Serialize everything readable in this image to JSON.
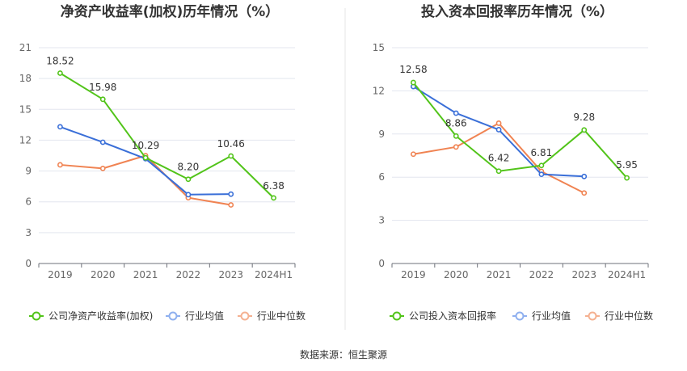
{
  "colors": {
    "company": "#52c41a",
    "avg": "#3a6fd8",
    "median": "#f08352",
    "legend_avg": "#8fb0ef",
    "legend_median": "#f5b191"
  },
  "source": "数据来源：恒生聚源",
  "chart_data": [
    {
      "type": "line",
      "title": "净资产收益率(加权)历年情况（%）",
      "categories": [
        "2019",
        "2020",
        "2021",
        "2022",
        "2023",
        "2024H1"
      ],
      "ylim": [
        0,
        21
      ],
      "yticks": [
        0,
        3,
        6,
        9,
        12,
        15,
        18,
        21
      ],
      "grid": true,
      "legend_position": "bottom",
      "series": [
        {
          "name": "公司净资产收益率(加权)",
          "key": "company",
          "values": [
            18.52,
            15.98,
            10.29,
            8.2,
            10.46,
            6.38
          ],
          "labels": [
            "18.52",
            "15.98",
            "10.29",
            "8.20",
            "10.46",
            "6.38"
          ]
        },
        {
          "name": "行业均值",
          "key": "avg",
          "values": [
            13.3,
            11.8,
            10.2,
            6.7,
            6.75,
            null
          ]
        },
        {
          "name": "行业中位数",
          "key": "median",
          "values": [
            9.6,
            9.25,
            10.5,
            6.4,
            5.7,
            null
          ]
        }
      ]
    },
    {
      "type": "line",
      "title": "投入资本回报率历年情况（%）",
      "categories": [
        "2019",
        "2020",
        "2021",
        "2022",
        "2023",
        "2024H1"
      ],
      "ylim": [
        0,
        15
      ],
      "yticks": [
        0,
        3,
        6,
        9,
        12,
        15
      ],
      "grid": true,
      "legend_position": "bottom",
      "series": [
        {
          "name": "公司投入资本回报率",
          "key": "company",
          "values": [
            12.58,
            8.86,
            6.42,
            6.81,
            9.28,
            5.95
          ],
          "labels": [
            "12.58",
            "8.86",
            "6.42",
            "6.81",
            "9.28",
            "5.95"
          ]
        },
        {
          "name": "行业均值",
          "key": "avg",
          "values": [
            12.3,
            10.45,
            9.3,
            6.2,
            6.05,
            null
          ]
        },
        {
          "name": "行业中位数",
          "key": "median",
          "values": [
            7.6,
            8.1,
            9.75,
            6.4,
            4.9,
            null
          ]
        }
      ]
    }
  ]
}
